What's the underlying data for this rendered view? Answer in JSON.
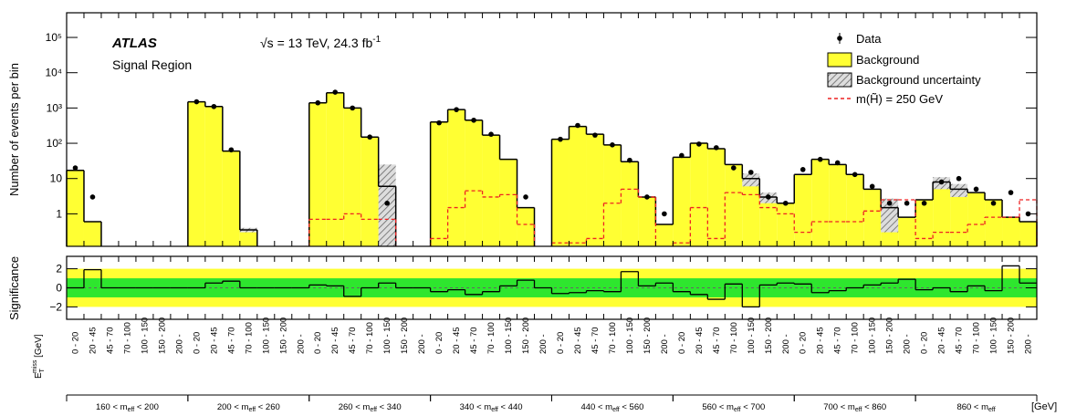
{
  "chart_data": {
    "type": "bar",
    "experiment": "ATLAS",
    "region": "Signal Region",
    "energy": {
      "text": "√s = 13 TeV, 24.3 fb",
      "sup": "-1"
    },
    "ylabel": "Number of events per bin",
    "y2label": "Significance",
    "xlabel": {
      "main": "E",
      "sub": "T",
      "sup": "miss",
      "unit": " [GeV]"
    },
    "xunit": "[GeV]",
    "log_y": true,
    "ylim": [
      0.12,
      500000
    ],
    "yticks": [
      1,
      10,
      {
        "value": 100,
        "label": "10²"
      },
      {
        "value": 1000,
        "label": "10³"
      },
      {
        "value": 10000,
        "label": "10⁴"
      },
      {
        "value": 100000,
        "label": "10⁵"
      }
    ],
    "y2lim": [
      -3.3,
      3.3
    ],
    "y2ticks": [
      {
        "value": -2,
        "label": "−2"
      },
      0,
      2
    ],
    "bands": [
      {
        "value": 2,
        "color": "#ffff33"
      },
      {
        "value": 1,
        "color": "#2ee62e"
      }
    ],
    "groups": [
      {
        "pre": "160 < m",
        "sub": "eff",
        "post": " < 200"
      },
      {
        "pre": "200 < m",
        "sub": "eff",
        "post": " < 260"
      },
      {
        "pre": "260 < m",
        "sub": "eff",
        "post": " < 340"
      },
      {
        "pre": "340 < m",
        "sub": "eff",
        "post": " < 440"
      },
      {
        "pre": "440 < m",
        "sub": "eff",
        "post": " < 560"
      },
      {
        "pre": "560 < m",
        "sub": "eff",
        "post": " < 700"
      },
      {
        "pre": "700 < m",
        "sub": "eff",
        "post": " < 860"
      },
      {
        "pre": "860 < m",
        "sub": "eff"
      }
    ],
    "categories": [
      "0 - 20",
      "20 - 45",
      "45 - 70",
      "70 - 100",
      "100 - 150",
      "150 - 200",
      "200 -",
      "0 - 20",
      "20 - 45",
      "45 - 70",
      "70 - 100",
      "100 - 150",
      "150 - 200",
      "200 -",
      "0 - 20",
      "20 - 45",
      "45 - 70",
      "70 - 100",
      "100 - 150",
      "150 - 200",
      "200 -",
      "0 - 20",
      "20 - 45",
      "45 - 70",
      "70 - 100",
      "100 - 150",
      "150 - 200",
      "200 -",
      "0 - 20",
      "20 - 45",
      "45 - 70",
      "70 - 100",
      "100 - 150",
      "150 - 200",
      "200 -",
      "0 - 20",
      "20 - 45",
      "45 - 70",
      "70 - 100",
      "100 - 150",
      "150 - 200",
      "200 -",
      "0 - 20",
      "20 - 45",
      "45 - 70",
      "70 - 100",
      "100 - 150",
      "150 - 200",
      "200 -",
      "0 - 20",
      "20 - 45",
      "45 - 70",
      "70 - 100",
      "100 - 150",
      "150 - 200",
      "200 -"
    ],
    "series": [
      {
        "name": "Data",
        "color": "#000000",
        "values": [
          20,
          3,
          null,
          null,
          null,
          null,
          null,
          1500,
          1100,
          65,
          null,
          null,
          null,
          null,
          1400,
          2800,
          1000,
          150,
          2,
          null,
          null,
          380,
          900,
          450,
          180,
          null,
          3,
          null,
          130,
          320,
          170,
          90,
          33,
          3,
          1,
          45,
          95,
          75,
          20,
          15,
          3,
          2,
          18,
          35,
          28,
          13,
          6,
          2,
          2,
          2,
          8,
          10,
          5,
          2,
          4,
          1
        ]
      },
      {
        "name": "Background",
        "color": "#ffff33",
        "values": [
          17,
          0.6,
          null,
          null,
          null,
          null,
          null,
          1500,
          1100,
          60,
          0.35,
          null,
          null,
          null,
          1400,
          2700,
          1000,
          150,
          6,
          null,
          null,
          400,
          900,
          450,
          170,
          35,
          1.5,
          null,
          130,
          300,
          180,
          90,
          30,
          3,
          0.5,
          40,
          100,
          70,
          25,
          10,
          3,
          2,
          13,
          35,
          25,
          13,
          5,
          1.5,
          0.8,
          2.5,
          8,
          5,
          4,
          2.5,
          0.8,
          0.6
        ]
      },
      {
        "name": "Background uncertainty",
        "color": "#777777",
        "values": [
          null,
          null,
          null,
          null,
          null,
          null,
          null,
          null,
          null,
          null,
          0.05,
          null,
          null,
          null,
          null,
          null,
          null,
          null,
          19,
          null,
          null,
          null,
          null,
          null,
          null,
          null,
          null,
          null,
          null,
          null,
          null,
          null,
          null,
          null,
          null,
          null,
          null,
          null,
          null,
          4,
          1,
          null,
          null,
          null,
          null,
          null,
          null,
          1.2,
          null,
          null,
          3,
          2,
          null,
          null,
          null,
          null
        ]
      },
      {
        "name": "m(H̃) = 250 GeV",
        "color": "#ee2222",
        "values": [
          null,
          null,
          null,
          null,
          null,
          null,
          null,
          null,
          null,
          null,
          null,
          null,
          null,
          null,
          0.7,
          0.7,
          1.0,
          0.7,
          0.7,
          null,
          null,
          0.2,
          1.5,
          4.5,
          3,
          3.5,
          0.5,
          null,
          0.15,
          0.15,
          0.2,
          2,
          5,
          3,
          null,
          0.15,
          1.5,
          0.2,
          4,
          3.5,
          1.5,
          1,
          0.3,
          0.6,
          0.6,
          0.6,
          1.2,
          2.5,
          2.5,
          0.2,
          0.3,
          0.3,
          0.5,
          0.8,
          0.8,
          2.5
        ]
      },
      {
        "name": "Significance",
        "axis": "y2",
        "color": "#000000",
        "values": [
          0,
          1.9,
          0,
          0,
          0,
          0,
          0,
          0,
          0.5,
          0.7,
          0,
          0,
          0,
          0,
          0.3,
          0.2,
          -0.9,
          0,
          0.5,
          0,
          0,
          -0.4,
          -0.2,
          -0.7,
          -0.4,
          0.2,
          0.8,
          0,
          -0.6,
          -0.5,
          -0.3,
          -0.4,
          1.7,
          0.2,
          0.5,
          -0.4,
          -0.7,
          -1.2,
          0.4,
          -2.0,
          0.3,
          0.5,
          0.4,
          -0.5,
          -0.3,
          0,
          0.3,
          0.5,
          0.9,
          -0.2,
          0,
          -0.4,
          0.2,
          -0.3,
          2.3,
          0.5
        ]
      }
    ]
  }
}
